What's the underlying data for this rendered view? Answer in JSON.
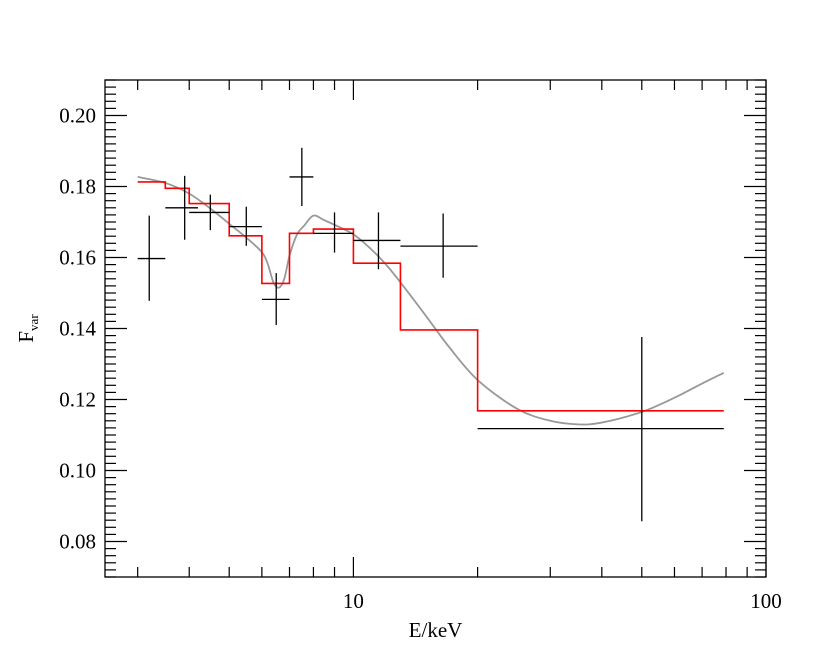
{
  "chart_data": {
    "type": "line",
    "title": "",
    "xlabel": "E/keV",
    "ylabel": {
      "main": "F",
      "sub": "var"
    },
    "xscale": "log",
    "xlim": [
      2.5,
      100
    ],
    "ylim": [
      0.07,
      0.21
    ],
    "grid": false,
    "x_ticks": [
      {
        "value": 10,
        "label": "10"
      },
      {
        "value": 100,
        "label": "100"
      }
    ],
    "y_ticks": [
      {
        "value": 0.08,
        "label": "0.08"
      },
      {
        "value": 0.1,
        "label": "0.10"
      },
      {
        "value": 0.12,
        "label": "0.12"
      },
      {
        "value": 0.14,
        "label": "0.14"
      },
      {
        "value": 0.16,
        "label": "0.16"
      },
      {
        "value": 0.18,
        "label": "0.18"
      },
      {
        "value": 0.2,
        "label": "0.20"
      }
    ],
    "series": [
      {
        "kind": "errorbars",
        "color": "#000000",
        "points": [
          {
            "x": 3.2,
            "xlo": 3.0,
            "xhi": 3.5,
            "y": 0.1597,
            "ylo": 0.1478,
            "yhi": 0.1718
          },
          {
            "x": 3.9,
            "xlo": 3.5,
            "xhi": 4.2,
            "y": 0.174,
            "ylo": 0.165,
            "yhi": 0.183
          },
          {
            "x": 4.5,
            "xlo": 4.0,
            "xhi": 5.0,
            "y": 0.1727,
            "ylo": 0.1677,
            "yhi": 0.1777
          },
          {
            "x": 5.5,
            "xlo": 5.0,
            "xhi": 6.0,
            "y": 0.1687,
            "ylo": 0.1633,
            "yhi": 0.1743
          },
          {
            "x": 6.5,
            "xlo": 6.0,
            "xhi": 7.0,
            "y": 0.1482,
            "ylo": 0.141,
            "yhi": 0.1556
          },
          {
            "x": 7.5,
            "xlo": 7.0,
            "xhi": 8.0,
            "y": 0.1827,
            "ylo": 0.1745,
            "yhi": 0.1909
          },
          {
            "x": 9.0,
            "xlo": 8.0,
            "xhi": 10.0,
            "y": 0.1668,
            "ylo": 0.1614,
            "yhi": 0.1727
          },
          {
            "x": 11.5,
            "xlo": 10.0,
            "xhi": 13.0,
            "y": 0.1648,
            "ylo": 0.1567,
            "yhi": 0.1727
          },
          {
            "x": 16.5,
            "xlo": 13.0,
            "xhi": 20.0,
            "y": 0.1632,
            "ylo": 0.1543,
            "yhi": 0.1724
          },
          {
            "x": 50.0,
            "xlo": 20.0,
            "xhi": 79.0,
            "y": 0.1118,
            "ylo": 0.0857,
            "yhi": 0.1376
          }
        ]
      },
      {
        "kind": "step",
        "color": "#ff0000",
        "bins": [
          {
            "xlo": 3.0,
            "xhi": 3.5,
            "y": 0.1813
          },
          {
            "xlo": 3.5,
            "xhi": 4.0,
            "y": 0.1795
          },
          {
            "xlo": 4.0,
            "xhi": 5.0,
            "y": 0.1752
          },
          {
            "xlo": 5.0,
            "xhi": 6.0,
            "y": 0.1661
          },
          {
            "xlo": 6.0,
            "xhi": 7.0,
            "y": 0.1527
          },
          {
            "xlo": 7.0,
            "xhi": 8.0,
            "y": 0.1668
          },
          {
            "xlo": 8.0,
            "xhi": 10.0,
            "y": 0.168
          },
          {
            "xlo": 10.0,
            "xhi": 13.0,
            "y": 0.1584
          },
          {
            "xlo": 13.0,
            "xhi": 20.0,
            "y": 0.1396
          },
          {
            "xlo": 20.0,
            "xhi": 79.0,
            "y": 0.1168
          }
        ]
      },
      {
        "kind": "smooth",
        "color": "#999999",
        "x": [
          3.0,
          3.5,
          4.0,
          4.5,
          5.0,
          5.5,
          6.0,
          6.2,
          6.4,
          6.6,
          6.8,
          7.0,
          7.3,
          7.6,
          8.0,
          8.5,
          9.0,
          10.0,
          11.0,
          12.0,
          13.0,
          15.0,
          17.0,
          20.0,
          25.0,
          30.0,
          35.0,
          40.0,
          50.0,
          60.0,
          70.0,
          79.0
        ],
        "y": [
          0.1827,
          0.181,
          0.178,
          0.1738,
          0.1695,
          0.1656,
          0.1615,
          0.1582,
          0.153,
          0.1515,
          0.154,
          0.1605,
          0.1665,
          0.169,
          0.1718,
          0.1705,
          0.1692,
          0.1665,
          0.1625,
          0.158,
          0.153,
          0.1435,
          0.135,
          0.1255,
          0.1173,
          0.114,
          0.113,
          0.1135,
          0.1165,
          0.1205,
          0.1245,
          0.1275
        ]
      }
    ]
  }
}
